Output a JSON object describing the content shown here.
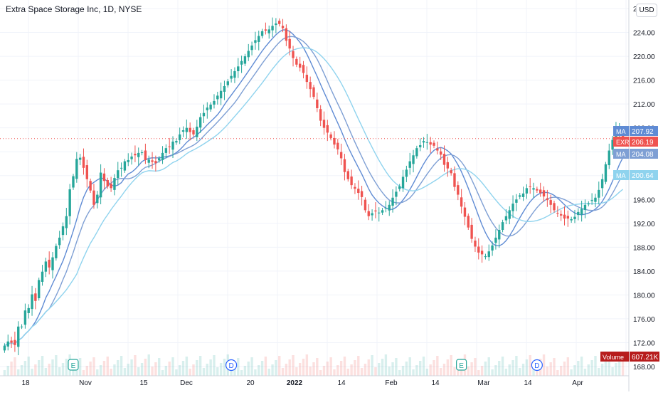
{
  "title": "Extra Space Storage Inc, 1D, NYSE",
  "currency_button": "USD",
  "colors": {
    "up": "#26a69a",
    "down": "#ef5350",
    "ma_fast": "#7e9fd4",
    "ma_mid": "#5f8bd4",
    "ma_slow": "#8fd3ee",
    "volume_badge": "#b71c1c",
    "price_line": "#ef5350"
  },
  "chart_data": {
    "type": "candlestick",
    "title": "Extra Space Storage Inc, 1D, NYSE",
    "ylim": [
      168,
      228
    ],
    "y_ticks": [
      "2",
      "224.00",
      "220.00",
      "216.00",
      "212.00",
      "208.00",
      "204.00",
      "200.00",
      "196.00",
      "192.00",
      "188.00",
      "184.00",
      "180.00",
      "176.00",
      "172.00",
      "168.00"
    ],
    "x_ticks": [
      "18",
      "Nov",
      "15",
      "Dec",
      "20",
      "2022",
      "14",
      "Feb",
      "14",
      "Feb",
      "Mar",
      "14",
      "Apr"
    ],
    "legend_labels": [
      {
        "label": "MA",
        "value": "207.92",
        "color": "#5f8bd4"
      },
      {
        "label": "EXR",
        "value": "206.19",
        "color": "#ef5350"
      },
      {
        "label": "MA",
        "value": "204.08",
        "color": "#7e9fd4"
      },
      {
        "label": "MA",
        "value": "200.64",
        "color": "#8fd3ee"
      }
    ],
    "volume_badge": {
      "label": "Volume",
      "value": "607.21K"
    },
    "event_markers": [
      {
        "text": "E",
        "x_index": 20
      },
      {
        "text": "D",
        "x_index": 66
      },
      {
        "text": "E",
        "x_index": 133
      },
      {
        "text": "D",
        "x_index": 155
      }
    ],
    "closes": [
      171.5,
      172.2,
      172.0,
      171.6,
      174.7,
      174.7,
      177.4,
      177.8,
      180.1,
      179.0,
      182.5,
      183.9,
      185.6,
      184.6,
      186.3,
      188.2,
      189.6,
      191.5,
      193.2,
      197.7,
      199.9,
      202.8,
      203.0,
      201.3,
      199.4,
      197.5,
      195.1,
      196.8,
      200.5,
      199.1,
      198.2,
      197.9,
      199.6,
      200.9,
      201.3,
      202.4,
      202.6,
      203.2,
      203.4,
      203.8,
      203.9,
      202.6,
      202.7,
      202.3,
      202.1,
      202.9,
      203.8,
      204.6,
      204.8,
      205.7,
      205.8,
      206.9,
      207.6,
      208.0,
      207.3,
      206.9,
      208.2,
      209.8,
      210.5,
      211.4,
      211.9,
      212.5,
      213.4,
      214.2,
      215.0,
      215.8,
      216.7,
      217.5,
      218.3,
      219.2,
      220.0,
      220.9,
      221.8,
      222.7,
      223.4,
      224.2,
      224.3,
      224.5,
      225.1,
      225.5,
      225.4,
      224.7,
      222.6,
      221.3,
      219.7,
      218.6,
      218.1,
      217.2,
      215.7,
      214.5,
      213.2,
      211.3,
      209.2,
      208.0,
      207.2,
      206.3,
      205.2,
      204.4,
      202.9,
      200.6,
      199.4,
      198.4,
      197.8,
      197.1,
      196.4,
      194.2,
      193.2,
      193.7,
      194.0,
      193.8,
      194.2,
      194.6,
      195.1,
      196.3,
      197.3,
      198.2,
      199.8,
      201.0,
      202.4,
      203.4,
      204.6,
      205.1,
      205.8,
      205.6,
      205.2,
      205.0,
      204.2,
      203.5,
      201.8,
      201.2,
      200.4,
      198.1,
      196.8,
      194.8,
      193.1,
      191.3,
      189.4,
      188.1,
      187.1,
      186.8,
      186.5,
      187.3,
      188.3,
      189.6,
      190.9,
      192.2,
      193.2,
      194.2,
      195.3,
      196.0,
      196.7,
      197.0,
      197.9,
      198.1,
      197.9,
      197.5,
      197.1,
      196.5,
      195.9,
      195.1,
      194.2,
      193.7,
      193.3,
      192.8,
      192.8,
      192.7,
      193.1,
      193.9,
      194.4,
      195.1,
      195.3,
      195.9,
      196.3,
      197.6,
      199.4,
      201.9,
      204.2,
      206.0,
      207.6,
      207.9,
      206.2
    ]
  }
}
